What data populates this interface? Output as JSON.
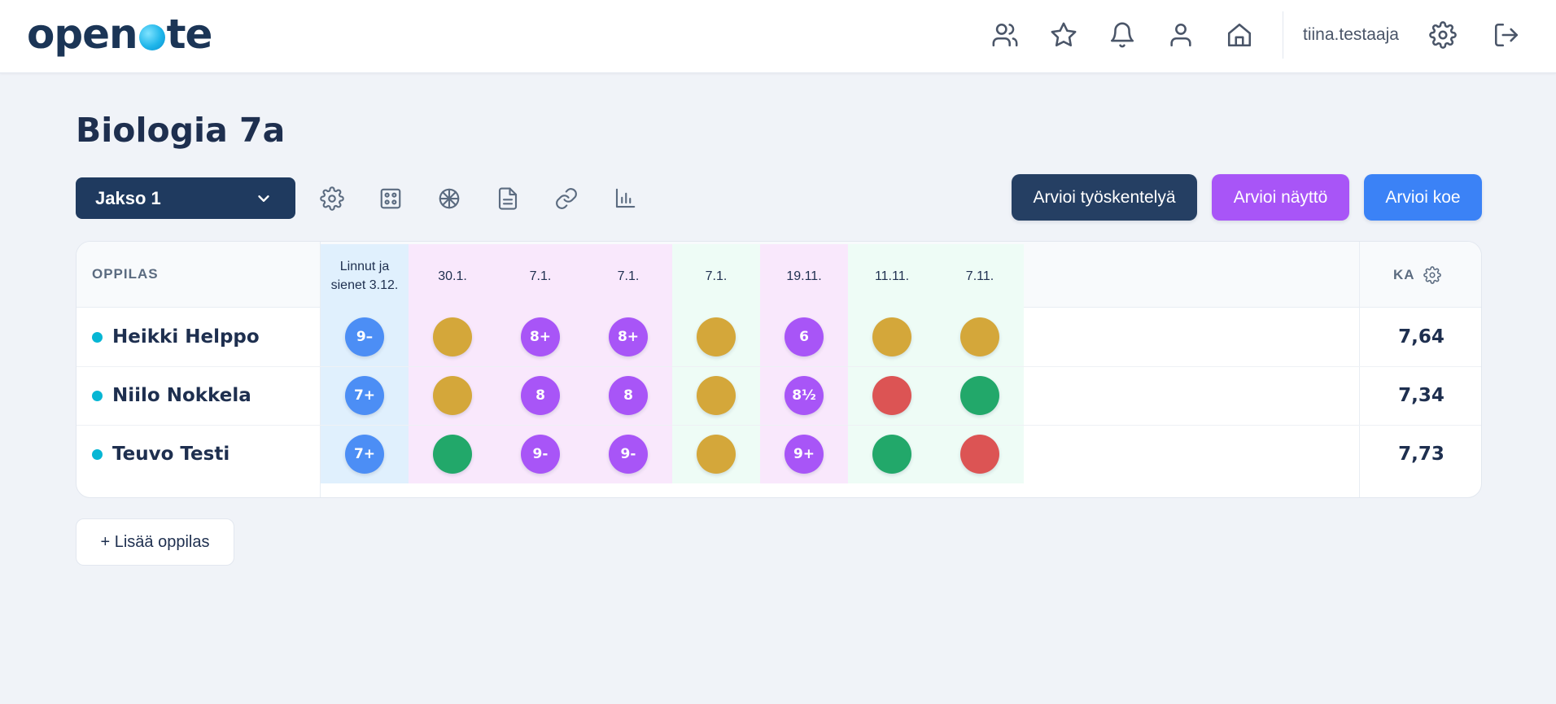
{
  "app": {
    "logo_text_left": "open",
    "logo_text_right": "te"
  },
  "header": {
    "username": "tiina.testaaja",
    "icons": [
      "users-icon",
      "star-icon",
      "bell-icon",
      "user-icon",
      "home-icon",
      "gear-icon",
      "logout-icon"
    ]
  },
  "page": {
    "title": "Biologia 7a"
  },
  "toolbar": {
    "period": "Jakso 1",
    "tool_icons": [
      "settings-icon",
      "grid-icon",
      "wheel-icon",
      "document-icon",
      "link-icon",
      "bar-chart-icon"
    ],
    "btn_work": "Arvioi työskentelyä",
    "btn_demo": "Arvioi näyttö",
    "btn_exam": "Arvioi koe",
    "colors": {
      "dark": "#253f63",
      "purple": "#a855f7",
      "blue": "#3b82f6"
    }
  },
  "table": {
    "student_header": "OPPILAS",
    "avg_header": "KA",
    "columns": [
      {
        "label": "Linnut ja sienet 3.12.",
        "bg": "#e0f0fd"
      },
      {
        "label": "30.1.",
        "bg": "#f9e8fc"
      },
      {
        "label": "7.1.",
        "bg": "#f9e8fc"
      },
      {
        "label": "7.1.",
        "bg": "#f9e8fc"
      },
      {
        "label": "7.1.",
        "bg": "#eefcf6"
      },
      {
        "label": "19.11.",
        "bg": "#f9e8fc"
      },
      {
        "label": "11.11.",
        "bg": "#eefcf6"
      },
      {
        "label": "7.11.",
        "bg": "#eefcf6"
      }
    ],
    "rows": [
      {
        "name": "Heikki Helppo",
        "avg": "7,64",
        "marks": [
          {
            "text": "9–",
            "color": "#4c8ef5"
          },
          {
            "text": "",
            "color": "#d4a73a"
          },
          {
            "text": "8+",
            "color": "#a855f7"
          },
          {
            "text": "8+",
            "color": "#a855f7"
          },
          {
            "text": "",
            "color": "#d4a73a"
          },
          {
            "text": "6",
            "color": "#a855f7"
          },
          {
            "text": "",
            "color": "#d4a73a"
          },
          {
            "text": "",
            "color": "#d4a73a"
          }
        ]
      },
      {
        "name": "Niilo Nokkela",
        "avg": "7,34",
        "marks": [
          {
            "text": "7+",
            "color": "#4c8ef5"
          },
          {
            "text": "",
            "color": "#d4a73a"
          },
          {
            "text": "8",
            "color": "#a855f7"
          },
          {
            "text": "8",
            "color": "#a855f7"
          },
          {
            "text": "",
            "color": "#d4a73a"
          },
          {
            "text": "8½",
            "color": "#a855f7"
          },
          {
            "text": "",
            "color": "#dc5454"
          },
          {
            "text": "",
            "color": "#22a86a"
          }
        ]
      },
      {
        "name": "Teuvo Testi",
        "avg": "7,73",
        "marks": [
          {
            "text": "7+",
            "color": "#4c8ef5"
          },
          {
            "text": "",
            "color": "#22a86a"
          },
          {
            "text": "9-",
            "color": "#a855f7"
          },
          {
            "text": "9-",
            "color": "#a855f7"
          },
          {
            "text": "",
            "color": "#d4a73a"
          },
          {
            "text": "9+",
            "color": "#a855f7"
          },
          {
            "text": "",
            "color": "#22a86a"
          },
          {
            "text": "",
            "color": "#dc5454"
          }
        ]
      }
    ]
  },
  "footer": {
    "add_student": "+ Lisää oppilas"
  }
}
